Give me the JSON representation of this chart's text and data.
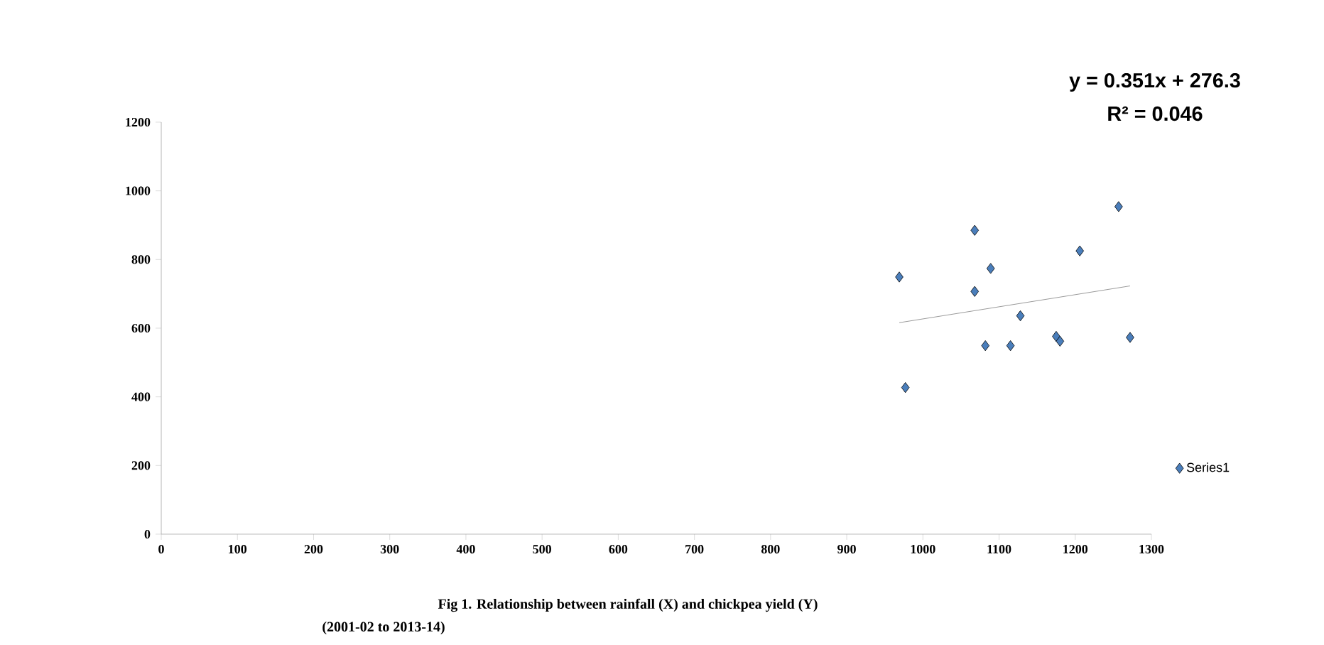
{
  "chart_data": {
    "type": "scatter",
    "title": "Fig 1. Relationship between rainfall (X) and chickpea yield (Y)",
    "subtitle": "(2001-02 to 2013-14)",
    "annotations": [
      "y = 0.351x + 276.3",
      "R² = 0.046"
    ],
    "xlim": [
      0,
      1300
    ],
    "xticks": [
      0,
      100,
      200,
      300,
      400,
      500,
      600,
      700,
      800,
      900,
      1000,
      1100,
      1200,
      1300
    ],
    "ylim": [
      0,
      1200
    ],
    "yticks": [
      0,
      200,
      400,
      600,
      800,
      1000,
      1200
    ],
    "legend": "right",
    "series": [
      {
        "name": "Series1",
        "marker": "diamond",
        "color": "#4a7ebb",
        "x": [
          969,
          1068,
          1089,
          1068,
          1257,
          1206,
          1128,
          1082,
          1115,
          1175,
          1180,
          1272,
          977
        ],
        "values": [
          749,
          885,
          774,
          707,
          954,
          825,
          636,
          549,
          549,
          576,
          562,
          573,
          427
        ]
      },
      {
        "type": "line",
        "color": "#808080",
        "x": [
          969,
          1272
        ],
        "values": [
          616,
          723
        ]
      }
    ]
  }
}
